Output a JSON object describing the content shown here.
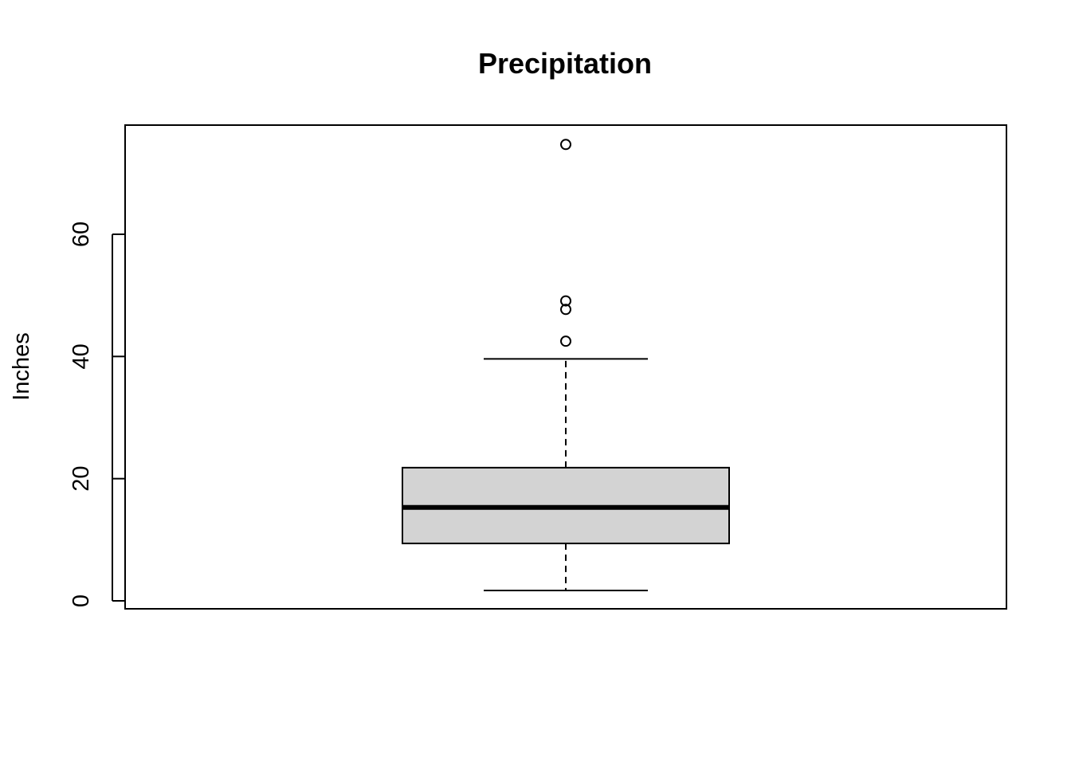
{
  "chart_data": {
    "type": "boxplot",
    "title": "Precipitation",
    "xlabel": "",
    "ylabel": "Inches",
    "ylim": [
      0,
      75
    ],
    "yticks": [
      0,
      20,
      40,
      60
    ],
    "grid": false,
    "legend": "none",
    "box": {
      "min": 1.7,
      "q1": 9.4,
      "median": 15.3,
      "q3": 21.8,
      "max": 39.6
    },
    "outliers": [
      42.5,
      47.7,
      49.1,
      74.7
    ],
    "colors": {
      "box_fill": "#d3d3d3",
      "stroke": "#000000"
    }
  }
}
